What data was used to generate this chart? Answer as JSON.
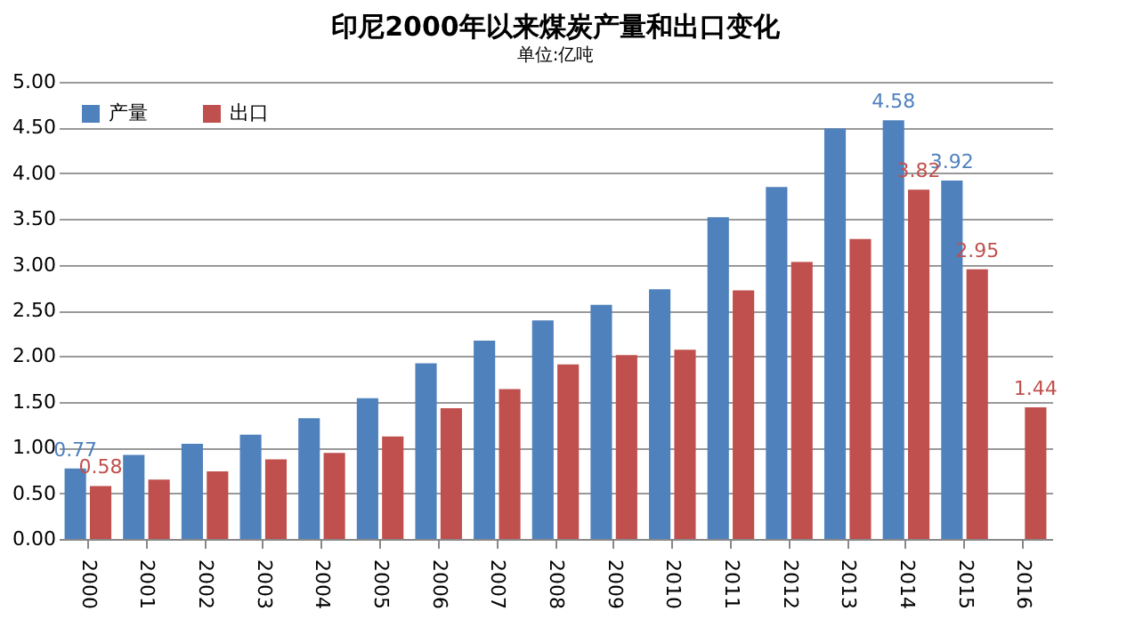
{
  "chart_data": {
    "type": "bar",
    "title": "印尼2000年以来煤炭产量和出口变化",
    "subtitle": "单位:亿吨",
    "categories": [
      "2000",
      "2001",
      "2002",
      "2003",
      "2004",
      "2005",
      "2006",
      "2007",
      "2008",
      "2009",
      "2010",
      "2011",
      "2012",
      "2013",
      "2014",
      "2015",
      "2016"
    ],
    "series": [
      {
        "name": "产量",
        "color": "#4f81bd",
        "values": [
          0.77,
          0.92,
          1.04,
          1.14,
          1.32,
          1.54,
          1.92,
          2.17,
          2.39,
          2.56,
          2.73,
          3.52,
          3.85,
          4.49,
          4.58,
          3.92,
          null
        ],
        "value_labels": [
          "0.77",
          null,
          null,
          null,
          null,
          null,
          null,
          null,
          null,
          null,
          null,
          null,
          null,
          null,
          "4.58",
          "3.92",
          null
        ]
      },
      {
        "name": "出口",
        "color": "#c0504d",
        "values": [
          0.58,
          0.65,
          0.74,
          0.87,
          0.94,
          1.12,
          1.43,
          1.64,
          1.91,
          2.01,
          2.07,
          2.72,
          3.03,
          3.28,
          3.82,
          2.95,
          1.44
        ],
        "value_labels": [
          "0.58",
          null,
          null,
          null,
          null,
          null,
          null,
          null,
          null,
          null,
          null,
          null,
          null,
          null,
          "3.82",
          "2.95",
          "1.44"
        ]
      }
    ],
    "ylim": [
      0,
      5
    ],
    "yticks": [
      {
        "value": 0,
        "label": "0.00"
      },
      {
        "value": 0.5,
        "label": "0.50"
      },
      {
        "value": 1,
        "label": "1.00"
      },
      {
        "value": 1.5,
        "label": "1.50"
      },
      {
        "value": 2,
        "label": "2.00"
      },
      {
        "value": 2.5,
        "label": "2.50"
      },
      {
        "value": 3,
        "label": "3.00"
      },
      {
        "value": 3.5,
        "label": "3.50"
      },
      {
        "value": 4,
        "label": "4.00"
      },
      {
        "value": 4.5,
        "label": "4.50"
      },
      {
        "value": 5,
        "label": "5.00"
      }
    ],
    "grid": "y",
    "legend": "top left"
  }
}
